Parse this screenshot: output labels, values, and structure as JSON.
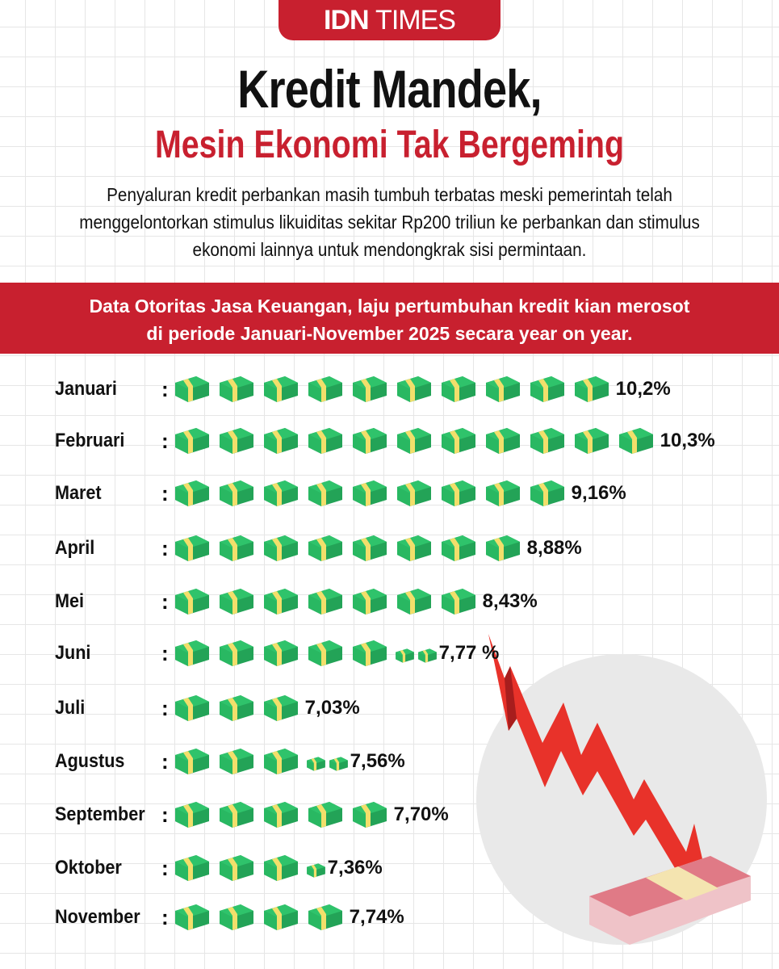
{
  "brand": {
    "bold": "IDN",
    "light": "TIMES"
  },
  "title": "Kredit Mandek,",
  "subtitle": "Mesin Ekonomi Tak Bergeming",
  "intro": "Penyaluran kredit perbankan masih tumbuh terbatas meski pemerintah telah menggelontorkan stimulus likuiditas sekitar Rp200 triliun ke perbankan dan stimulus ekonomi lainnya untuk mendongkrak sisi permintaan.",
  "band": {
    "line1": "Data Otoritas Jasa Keuangan, laju pertumbuhan kredit kian merosot",
    "line2": "di periode Januari-November 2025 secara year on year."
  },
  "colors": {
    "accent": "#c8202f",
    "money": "#2fc36b",
    "band": "#f2df6b",
    "arrow": "#e8322a"
  },
  "chart_data": {
    "type": "bar",
    "style": "pictograph",
    "icon": "money-stack-icon",
    "categories": [
      "Januari",
      "Februari",
      "Maret",
      "April",
      "Mei",
      "Juni",
      "Juli",
      "Agustus",
      "September",
      "Oktober",
      "November"
    ],
    "values": [
      10.2,
      10.3,
      9.16,
      8.88,
      8.43,
      7.77,
      7.03,
      7.56,
      7.7,
      7.36,
      7.74
    ],
    "labels": [
      "10,2%",
      "10,3%",
      "9,16%",
      "8,88%",
      "8,43%",
      "7,77 %",
      "7,03%",
      "7,56%",
      "7,70%",
      "7,36%",
      "7,74%"
    ],
    "unit": "%",
    "full_icons": [
      10,
      11,
      9,
      8,
      7,
      5,
      3,
      3,
      5,
      3,
      4
    ],
    "small_icons": [
      0,
      0,
      0,
      0,
      0,
      2,
      0,
      2,
      0,
      1,
      0
    ]
  }
}
